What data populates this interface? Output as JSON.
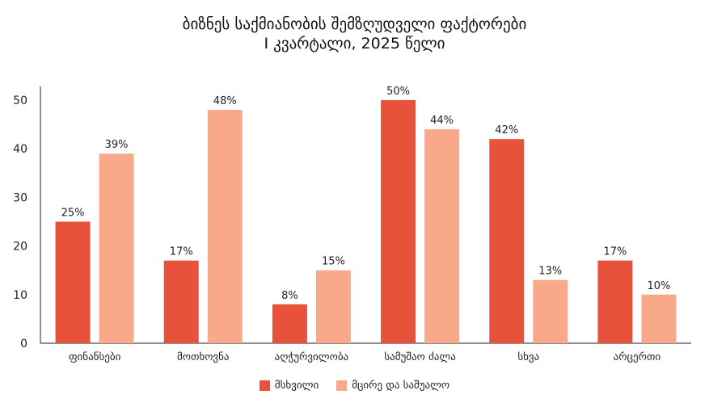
{
  "chart_data": {
    "type": "bar",
    "title": "ბიზნეს საქმიანობის შემზღუდველი ფაქტორები",
    "subtitle": "I კვარტალი, 2025 წელი",
    "categories": [
      "ფინანსები",
      "მოთხოვნა",
      "აღჭურვილობა",
      "სამუშაო ძალა",
      "სხვა",
      "არცერთი"
    ],
    "series": [
      {
        "name": "მსხვილი",
        "color": "#E8523A",
        "values": [
          25,
          17,
          8,
          50,
          42,
          17
        ],
        "labels": [
          "25%",
          "17%",
          "8%",
          "50%",
          "42%",
          "17%"
        ]
      },
      {
        "name": "მცირე და საშუალო",
        "color": "#F9A98A",
        "values": [
          39,
          48,
          15,
          44,
          13,
          10
        ],
        "labels": [
          "39%",
          "48%",
          "15%",
          "44%",
          "13%",
          "10%"
        ]
      }
    ],
    "yticks": [
      0,
      10,
      20,
      30,
      40,
      50
    ],
    "ylim": [
      0,
      50
    ],
    "legend": "bottom",
    "grid": false
  }
}
